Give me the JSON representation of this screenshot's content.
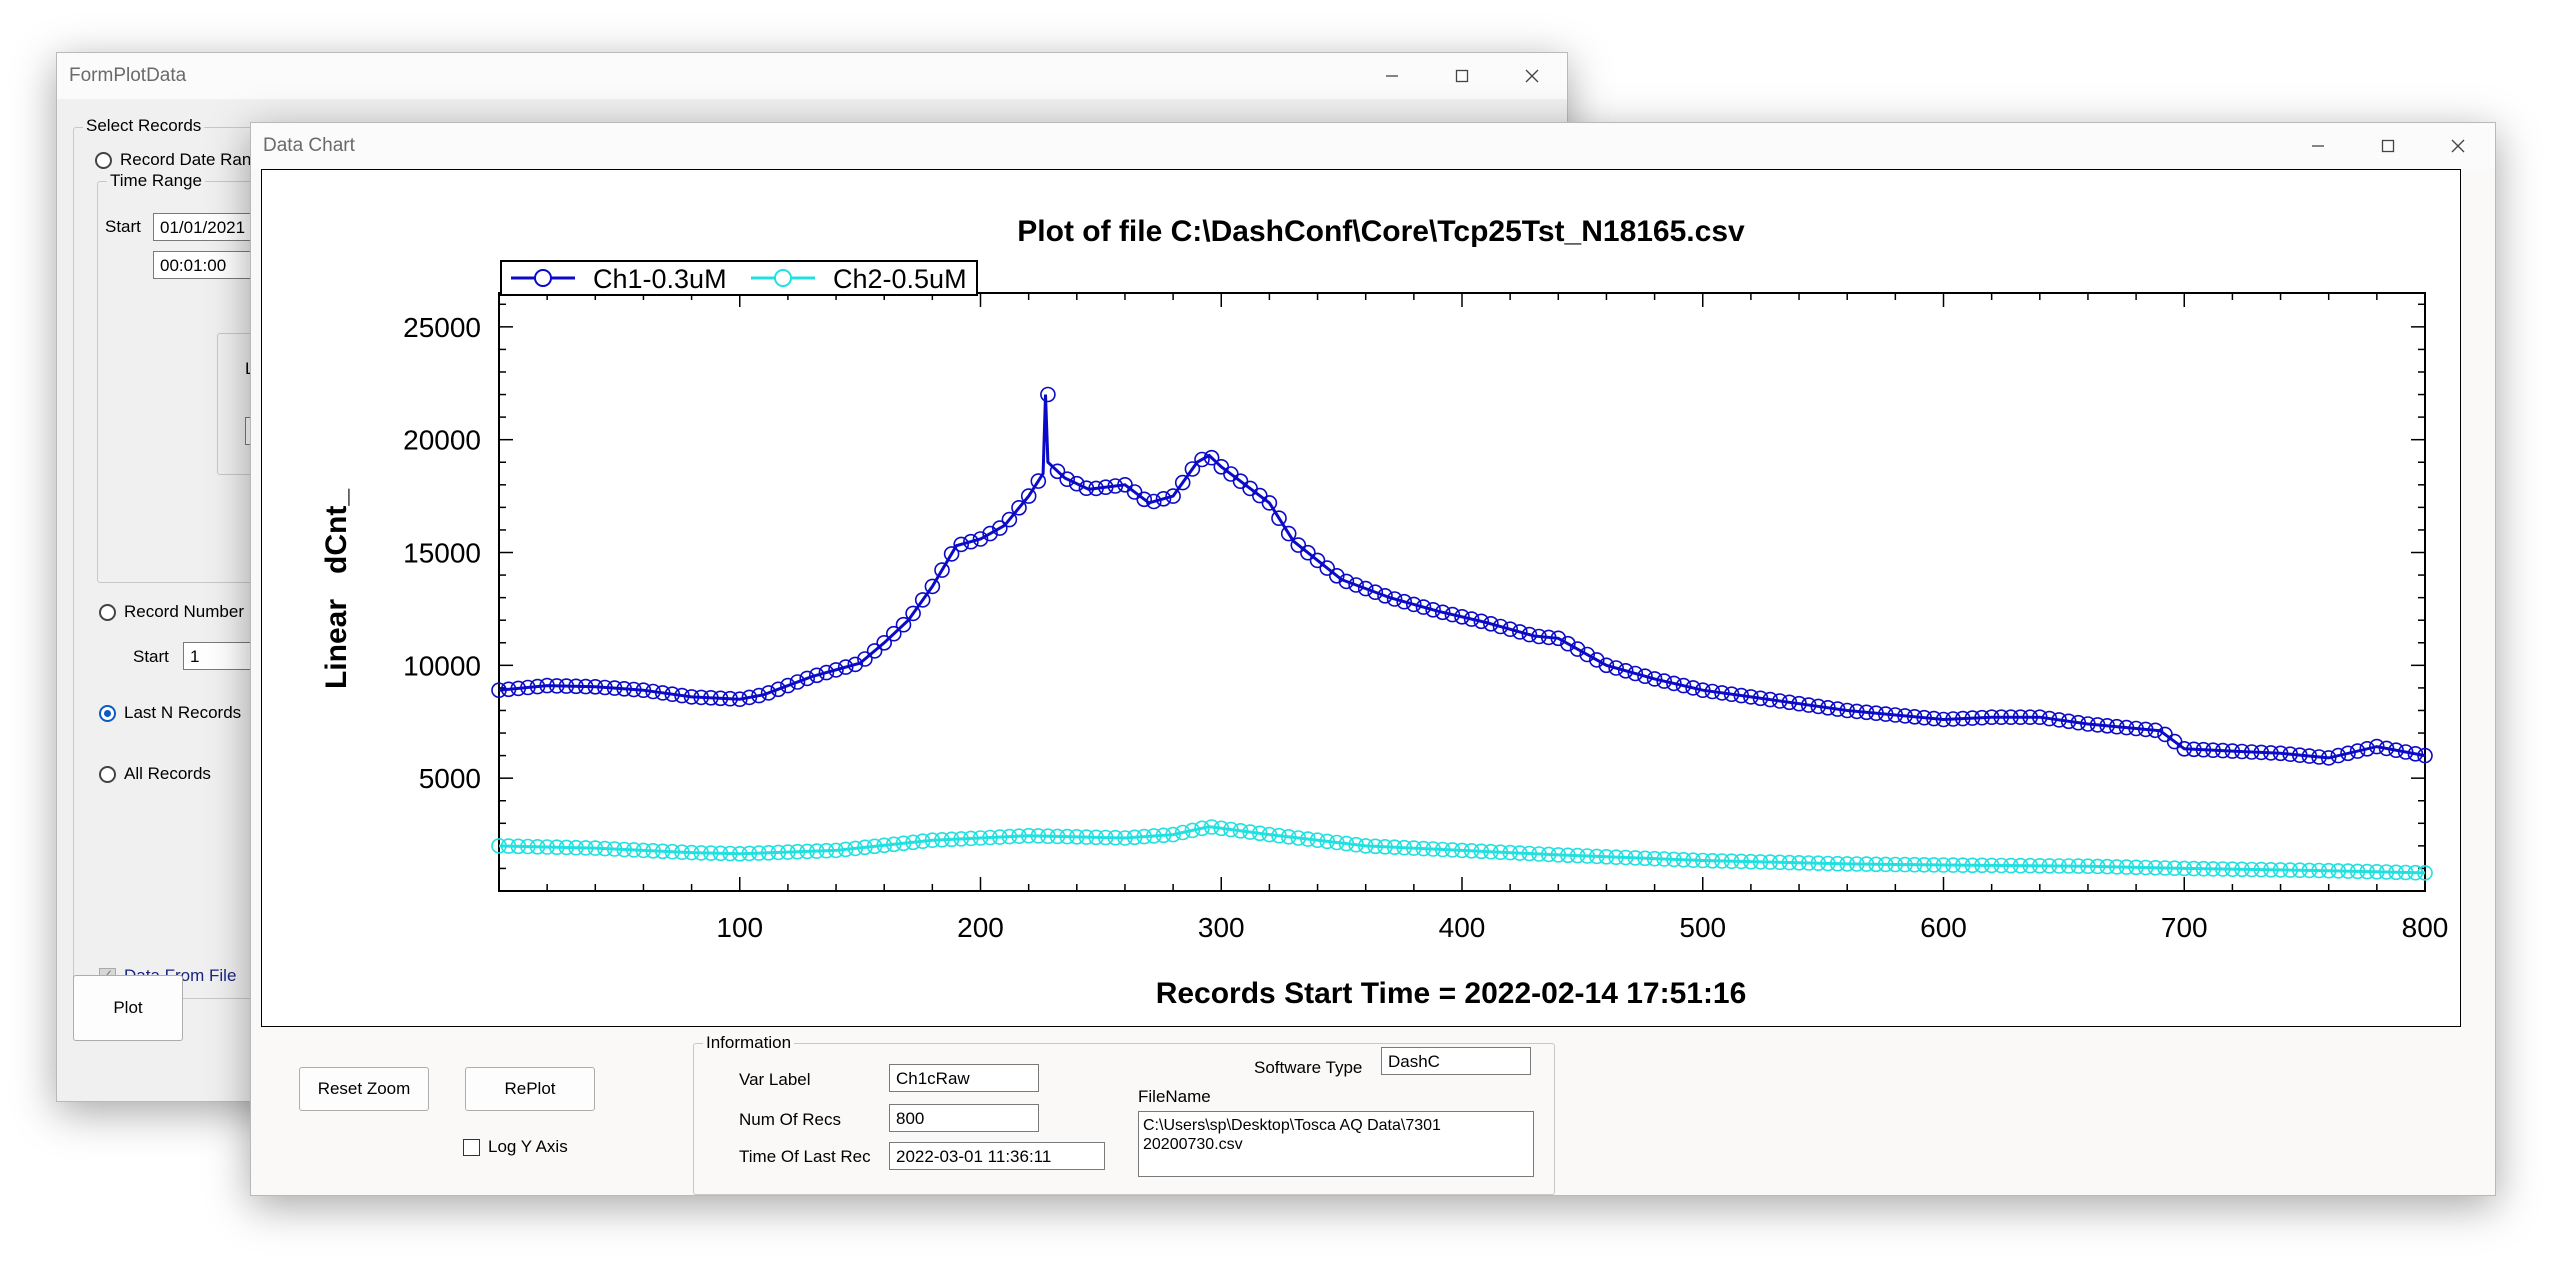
{
  "back_window": {
    "title": "FormPlotData",
    "select_records_label": "Select Records",
    "record_date_range_label": "Record Date Ran",
    "time_range_label": "Time Range",
    "start_label": "Start",
    "start_date": "01/01/2021",
    "start_time": "00:01:00",
    "partial_L": "L",
    "record_number_label": "Record Number F",
    "rec_start_label": "Start",
    "rec_start_value": "1",
    "last_n_label": "Last N Records",
    "all_records_label": "All Records",
    "data_from_file_label": "Data From File",
    "plot_button": "Plot"
  },
  "chart_window": {
    "title": "Data Chart",
    "reset_zoom": "Reset Zoom",
    "replot": "RePlot",
    "log_y_axis": "Log Y Axis",
    "info": {
      "group_label": "Information",
      "var_label_caption": "Var Label",
      "var_label_value": "Ch1cRaw",
      "num_recs_caption": "Num Of Recs",
      "num_recs_value": "800",
      "time_last_caption": "Time Of Last Rec",
      "time_last_value": "2022-03-01 11:36:11",
      "software_type_caption": "Software Type",
      "software_type_value": "DashC",
      "filename_caption": "FileName",
      "filename_line1": "C:\\Users\\sp\\Desktop\\Tosca AQ Data\\7301",
      "filename_line2": "20200730.csv"
    }
  },
  "chart_data": {
    "type": "line",
    "title": "Plot of file C:\\DashConf\\Core\\Tcp25Tst_N18165.csv",
    "xlabel": "Records Start Time = 2022-02-14 17:51:16",
    "ylabel": "Linear   dCnt_",
    "xlim": [
      0,
      800
    ],
    "ylim": [
      0,
      26500
    ],
    "xticks": [
      "100",
      "200",
      "300",
      "400",
      "500",
      "600",
      "700",
      "800"
    ],
    "yticks": [
      "5000",
      "10000",
      "15000",
      "20000",
      "25000"
    ],
    "legend_position": "top-left",
    "grid": false,
    "series": [
      {
        "name": "Ch1-0.3uM",
        "color": "#0a0ac8",
        "points": [
          [
            0,
            8900
          ],
          [
            20,
            9100
          ],
          [
            40,
            9050
          ],
          [
            60,
            8900
          ],
          [
            80,
            8600
          ],
          [
            100,
            8500
          ],
          [
            110,
            8700
          ],
          [
            130,
            9500
          ],
          [
            150,
            10100
          ],
          [
            160,
            11000
          ],
          [
            170,
            12000
          ],
          [
            180,
            13500
          ],
          [
            190,
            15300
          ],
          [
            200,
            15600
          ],
          [
            210,
            16200
          ],
          [
            220,
            17500
          ],
          [
            226,
            18500
          ],
          [
            227,
            22000
          ],
          [
            228,
            19000
          ],
          [
            235,
            18300
          ],
          [
            245,
            17800
          ],
          [
            260,
            18000
          ],
          [
            270,
            17200
          ],
          [
            280,
            17500
          ],
          [
            290,
            19000
          ],
          [
            295,
            19300
          ],
          [
            300,
            18800
          ],
          [
            320,
            17200
          ],
          [
            330,
            15500
          ],
          [
            350,
            13800
          ],
          [
            370,
            13000
          ],
          [
            390,
            12400
          ],
          [
            410,
            11900
          ],
          [
            430,
            11300
          ],
          [
            440,
            11200
          ],
          [
            460,
            10000
          ],
          [
            480,
            9400
          ],
          [
            500,
            8900
          ],
          [
            520,
            8600
          ],
          [
            540,
            8300
          ],
          [
            560,
            8000
          ],
          [
            580,
            7800
          ],
          [
            600,
            7600
          ],
          [
            620,
            7700
          ],
          [
            640,
            7700
          ],
          [
            660,
            7400
          ],
          [
            680,
            7200
          ],
          [
            690,
            7100
          ],
          [
            700,
            6300
          ],
          [
            720,
            6200
          ],
          [
            740,
            6100
          ],
          [
            760,
            5900
          ],
          [
            780,
            6400
          ],
          [
            790,
            6200
          ],
          [
            800,
            6000
          ]
        ]
      },
      {
        "name": "Ch2-0.5uM",
        "color": "#20e0e0",
        "points": [
          [
            0,
            2000
          ],
          [
            40,
            1900
          ],
          [
            80,
            1700
          ],
          [
            100,
            1650
          ],
          [
            140,
            1800
          ],
          [
            180,
            2250
          ],
          [
            220,
            2450
          ],
          [
            260,
            2350
          ],
          [
            280,
            2500
          ],
          [
            295,
            2850
          ],
          [
            320,
            2500
          ],
          [
            360,
            2000
          ],
          [
            400,
            1800
          ],
          [
            440,
            1600
          ],
          [
            500,
            1350
          ],
          [
            560,
            1200
          ],
          [
            600,
            1150
          ],
          [
            660,
            1100
          ],
          [
            700,
            1000
          ],
          [
            760,
            900
          ],
          [
            800,
            800
          ]
        ]
      }
    ]
  }
}
